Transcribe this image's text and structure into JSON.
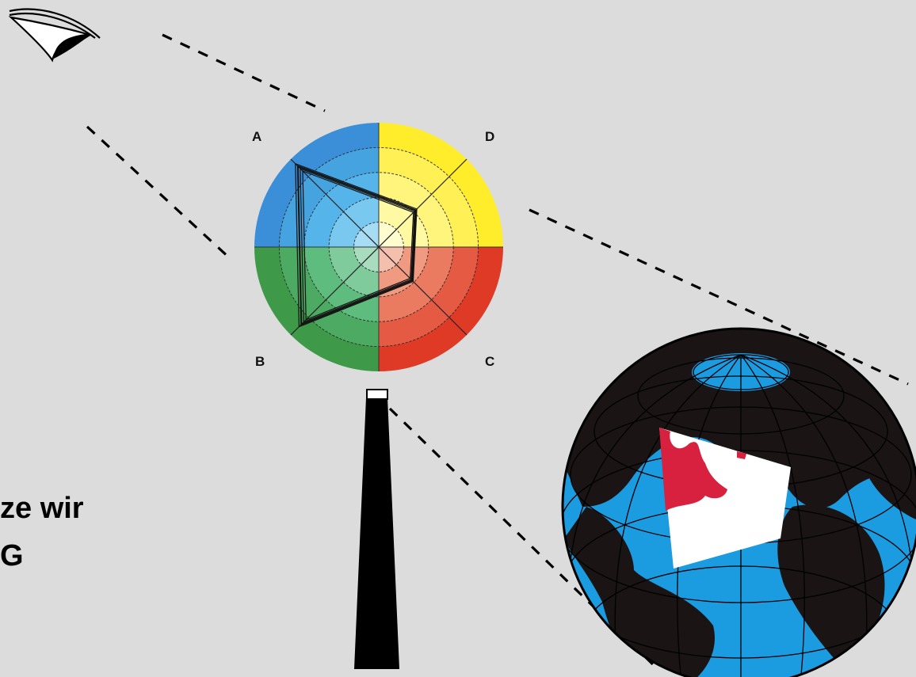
{
  "diagram": {
    "quadrant_labels": {
      "a": "A",
      "b": "B",
      "c": "C",
      "d": "D"
    },
    "quadrant_colors": {
      "A": [
        "#3a8fd8",
        "#45a3e0",
        "#55b5ea",
        "#78c8f0",
        "#a7dcf5"
      ],
      "D": [
        "#ffec2a",
        "#fff155",
        "#fff57c",
        "#fff9a3",
        "#fffccf"
      ],
      "C": [
        "#de3a26",
        "#e45a42",
        "#ea7a60",
        "#f09a82",
        "#f5bfad"
      ],
      "B": [
        "#3e9a48",
        "#4daa62",
        "#5ebc7e",
        "#7fcb9c",
        "#a9dcbf"
      ]
    },
    "radar_quadrilateral_levels": {
      "A": 0.92,
      "D": 0.42,
      "C": 0.38,
      "B": 0.88
    },
    "globe": {
      "ocean_color": "#1b9be0",
      "land_color": "#1a1414",
      "highlight_color": "#d8203f",
      "panel_color": "#ffffff"
    }
  },
  "caption": {
    "line1": "ze wir",
    "line2": "G"
  }
}
